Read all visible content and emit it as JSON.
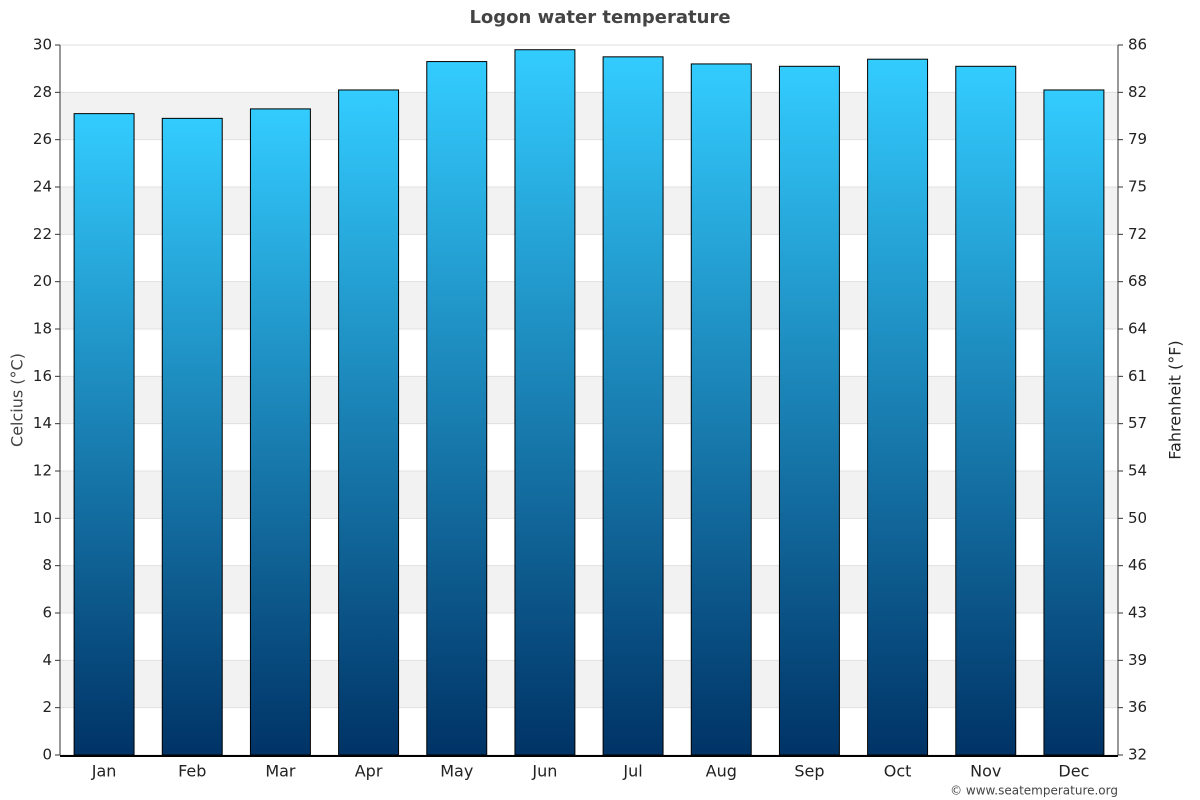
{
  "chart_data": {
    "type": "bar",
    "title": "Logon water temperature",
    "categories": [
      "Jan",
      "Feb",
      "Mar",
      "Apr",
      "May",
      "Jun",
      "Jul",
      "Aug",
      "Sep",
      "Oct",
      "Nov",
      "Dec"
    ],
    "values": [
      27.1,
      26.9,
      27.3,
      28.1,
      29.3,
      29.8,
      29.5,
      29.2,
      29.1,
      29.4,
      29.1,
      28.1
    ],
    "gradient": [
      "#33ccff",
      "#003366"
    ],
    "ylabel": "Celcius (°C)",
    "y2label": "Fahrenheit (°F)",
    "ylim": [
      0,
      30
    ],
    "yticks": [
      0,
      2,
      4,
      6,
      8,
      10,
      12,
      14,
      16,
      18,
      20,
      22,
      24,
      26,
      28,
      30
    ],
    "y2lim": [
      32,
      86
    ],
    "y2ticks": [
      32,
      {
        "value": 35.6,
        "label": "36"
      },
      {
        "value": 39.2,
        "label": "39"
      },
      {
        "value": 42.8,
        "label": "43"
      },
      {
        "value": 46.4,
        "label": "46"
      },
      50,
      {
        "value": 53.6,
        "label": "54"
      },
      {
        "value": 57.2,
        "label": "57"
      },
      {
        "value": 60.8,
        "label": "61"
      },
      {
        "value": 64.4,
        "label": "64"
      },
      68,
      {
        "value": 71.6,
        "label": "72"
      },
      {
        "value": 75.2,
        "label": "75"
      },
      {
        "value": 78.8,
        "label": "79"
      },
      {
        "value": 82.4,
        "label": "82"
      },
      86
    ],
    "grid": true,
    "credit": "© www.seatemperature.org"
  }
}
